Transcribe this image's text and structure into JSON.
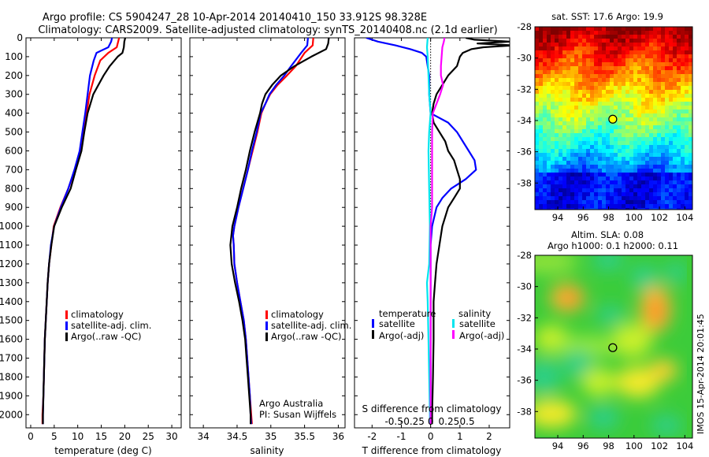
{
  "title": {
    "line1": "Argo profile: CS 5904247_28 10-Apr-2014 20140410_150 33.912S 98.328E",
    "line2": "Climatology: CARS2009. Satellite-adjusted climatology: synTS_20140408.nc (2.1d earlier)"
  },
  "colors": {
    "climatology": "#ff0000",
    "satellite": "#0000ff",
    "argo": "#000000",
    "sal_satellite": "#00e5ee",
    "sal_argo": "#ff00ff"
  },
  "chart_data": [
    {
      "type": "line",
      "name": "temperature-profile",
      "xlabel": "temperature (deg C)",
      "ylabel": "",
      "xlim": [
        -1,
        32
      ],
      "ylim": [
        2070,
        0
      ],
      "xticks": [
        "0",
        "5",
        "10",
        "15",
        "20",
        "25",
        "30"
      ],
      "xtick_values": [
        0,
        5,
        10,
        15,
        20,
        25,
        30
      ],
      "yticks": [
        "0",
        "100",
        "200",
        "300",
        "400",
        "500",
        "600",
        "700",
        "800",
        "900",
        "1000",
        "1100",
        "1200",
        "1300",
        "1400",
        "1500",
        "1600",
        "1700",
        "1800",
        "1900",
        "2000"
      ],
      "ytick_values": [
        0,
        100,
        200,
        300,
        400,
        500,
        600,
        700,
        800,
        900,
        1000,
        1100,
        1200,
        1300,
        1400,
        1500,
        1600,
        1700,
        1800,
        1900,
        2000
      ],
      "legend": [
        "climatology",
        "satellite-adj. clim.",
        "Argo(..raw -QC)"
      ],
      "series": [
        {
          "name": "climatology",
          "depth": [
            0,
            20,
            50,
            80,
            120,
            200,
            300,
            400,
            500,
            600,
            700,
            800,
            900,
            1000,
            1100,
            1200,
            1300,
            1400,
            1500,
            1600,
            1700,
            1800,
            1900,
            2000,
            2050
          ],
          "values": [
            18.8,
            18.6,
            18.3,
            16.5,
            14.8,
            13.6,
            12.5,
            11.9,
            11.2,
            10.6,
            9.4,
            8.0,
            6.3,
            4.9,
            4.4,
            3.9,
            3.6,
            3.4,
            3.2,
            3.0,
            2.9,
            2.8,
            2.7,
            2.5,
            2.5
          ]
        },
        {
          "name": "satellite-adj. clim.",
          "depth": [
            0,
            20,
            50,
            80,
            120,
            200,
            300,
            400,
            500,
            600,
            700,
            800,
            900,
            1000,
            1100,
            1200,
            1300,
            1400,
            1500,
            1600,
            1700,
            1800,
            1900,
            2000,
            2050
          ],
          "values": [
            17.3,
            17.1,
            16.5,
            14.0,
            13.4,
            12.6,
            12.1,
            11.6,
            11.0,
            10.4,
            9.3,
            8.0,
            6.4,
            5.0,
            4.3,
            3.9,
            3.6,
            3.4,
            3.2,
            3.0,
            2.9,
            2.8,
            2.7,
            2.6,
            2.6
          ]
        },
        {
          "name": "Argo(..raw -QC)",
          "depth": [
            0,
            20,
            50,
            80,
            100,
            150,
            200,
            250,
            300,
            400,
            500,
            600,
            700,
            800,
            900,
            1000,
            1100,
            1200,
            1300,
            1400,
            1500,
            1600,
            1700,
            1800,
            1900,
            2000,
            2050
          ],
          "values": [
            20.1,
            19.9,
            19.8,
            19.5,
            18.5,
            16.8,
            15.5,
            14.4,
            13.3,
            12.1,
            11.4,
            10.8,
            9.6,
            8.5,
            6.6,
            5.0,
            4.4,
            3.9,
            3.6,
            3.4,
            3.2,
            3.0,
            2.9,
            2.8,
            2.7,
            2.6,
            2.6
          ]
        }
      ]
    },
    {
      "type": "line",
      "name": "salinity-profile",
      "xlabel": "salinity",
      "xlim": [
        33.8,
        36.1
      ],
      "ylim": [
        2070,
        0
      ],
      "xticks": [
        "34",
        "34.5",
        "35",
        "35.5",
        "36"
      ],
      "xtick_values": [
        34,
        34.5,
        35,
        35.5,
        36
      ],
      "legend": [
        "climatology",
        "satellite-adj. clim.",
        "Argo(..raw -QC)"
      ],
      "annotation": [
        "Argo Australia",
        "PI: Susan Wijffels"
      ],
      "series": [
        {
          "name": "climatology",
          "depth": [
            0,
            40,
            80,
            150,
            200,
            250,
            300,
            350,
            400,
            500,
            600,
            700,
            800,
            900,
            1000,
            1050,
            1100,
            1200,
            1300,
            1400,
            1500,
            1600,
            1700,
            1800,
            1900,
            2000,
            2050
          ],
          "values": [
            35.63,
            35.62,
            35.5,
            35.37,
            35.24,
            35.1,
            34.99,
            34.92,
            34.86,
            34.8,
            34.73,
            34.66,
            34.59,
            34.52,
            34.46,
            34.44,
            34.45,
            34.46,
            34.5,
            34.55,
            34.6,
            34.63,
            34.65,
            34.67,
            34.69,
            34.71,
            34.72
          ]
        },
        {
          "name": "satellite-adj. clim.",
          "depth": [
            0,
            40,
            80,
            150,
            200,
            250,
            300,
            350,
            400,
            500,
            600,
            700,
            800,
            900,
            1000,
            1050,
            1100,
            1200,
            1300,
            1400,
            1500,
            1600,
            1700,
            1800,
            1900,
            2000,
            2050
          ],
          "values": [
            35.55,
            35.54,
            35.45,
            35.3,
            35.2,
            35.08,
            34.98,
            34.92,
            34.85,
            34.79,
            34.72,
            34.66,
            34.59,
            34.52,
            34.46,
            34.44,
            34.45,
            34.46,
            34.5,
            34.55,
            34.6,
            34.63,
            34.65,
            34.67,
            34.69,
            34.7,
            34.71
          ]
        },
        {
          "name": "Argo(..raw -QC)",
          "depth": [
            0,
            30,
            60,
            100,
            150,
            200,
            250,
            300,
            350,
            400,
            500,
            600,
            700,
            800,
            900,
            1000,
            1100,
            1200,
            1300,
            1400,
            1500,
            1600,
            1700,
            1800,
            1900,
            2000,
            2050
          ],
          "values": [
            35.86,
            35.85,
            35.82,
            35.6,
            35.35,
            35.15,
            35.02,
            34.92,
            34.87,
            34.84,
            34.76,
            34.69,
            34.63,
            34.56,
            34.5,
            34.43,
            34.4,
            34.42,
            34.47,
            34.53,
            34.58,
            34.62,
            34.64,
            34.66,
            34.68,
            34.7,
            34.7
          ]
        }
      ]
    },
    {
      "type": "line",
      "name": "difference-from-climatology",
      "xlabel": "T difference from climatology",
      "xlabel_top": "S difference from climatology",
      "xlim": [
        -2.6,
        2.7
      ],
      "ylim": [
        2070,
        0
      ],
      "xticks": [
        "-2",
        "-1",
        "0",
        "1",
        "2"
      ],
      "xtick_values": [
        -2,
        -1,
        0,
        1,
        2
      ],
      "xticks_top": [
        "-0.5",
        "-0.25",
        "0",
        "0.25",
        "0.5"
      ],
      "xtick_top_values": [
        -0.5,
        -0.25,
        0,
        0.25,
        0.5
      ],
      "legend_titles": [
        "temperature",
        "salinity"
      ],
      "legend_temperature": [
        "satellite",
        "Argo(-adj)"
      ],
      "legend_salinity": [
        "satellite",
        "Argo(-adj)"
      ],
      "series": [
        {
          "name": "temperature satellite",
          "depth": [
            0,
            20,
            40,
            60,
            80,
            100,
            150,
            200,
            300,
            400,
            450,
            500,
            550,
            600,
            650,
            700,
            750,
            800,
            850,
            900,
            1000,
            1100,
            1200,
            1400,
            1600,
            1800,
            2000,
            2050
          ],
          "values": [
            -2.2,
            -1.8,
            -1.2,
            -0.7,
            -0.3,
            -0.15,
            -0.1,
            -0.05,
            -0.05,
            0.0,
            0.6,
            0.9,
            1.1,
            1.3,
            1.5,
            1.55,
            1.2,
            0.7,
            0.4,
            0.2,
            0.05,
            0.0,
            0.0,
            0.0,
            0.0,
            0.0,
            0.0,
            0.0
          ]
        },
        {
          "name": "temperature Argo(-adj)",
          "depth": [
            0,
            10,
            20,
            30,
            40,
            50,
            60,
            80,
            100,
            150,
            200,
            250,
            300,
            350,
            400,
            450,
            500,
            550,
            600,
            650,
            700,
            750,
            800,
            850,
            900,
            1000,
            1100,
            1200,
            1300,
            1400,
            1600,
            1800,
            2000,
            2050
          ],
          "values": [
            1.2,
            1.5,
            2.7,
            1.6,
            2.8,
            1.8,
            1.4,
            1.1,
            1.0,
            0.9,
            0.6,
            0.4,
            0.2,
            0.1,
            0.05,
            0.1,
            0.3,
            0.5,
            0.6,
            0.8,
            0.9,
            1.0,
            1.0,
            0.8,
            0.6,
            0.4,
            0.3,
            0.2,
            0.15,
            0.1,
            0.1,
            0.08,
            0.05,
            0.05
          ]
        },
        {
          "name": "salinity satellite",
          "depth": [
            0,
            50,
            100,
            200,
            300,
            400,
            500,
            600,
            800,
            1000,
            1200,
            1300,
            1400,
            1600,
            1800,
            2000,
            2050
          ],
          "values": [
            -0.04,
            -0.05,
            -0.04,
            -0.03,
            -0.02,
            0.0,
            -0.02,
            -0.03,
            -0.02,
            -0.01,
            -0.02,
            -0.05,
            -0.04,
            -0.03,
            -0.02,
            -0.01,
            -0.01
          ]
        },
        {
          "name": "salinity Argo(-adj)",
          "depth": [
            0,
            20,
            50,
            100,
            150,
            200,
            250,
            300,
            350,
            400,
            500,
            600,
            700,
            800,
            900,
            1000,
            1100,
            1200,
            1300,
            1400,
            1600,
            1800,
            2000,
            2050
          ],
          "values": [
            0.19,
            0.18,
            0.16,
            0.15,
            0.14,
            0.14,
            0.17,
            0.13,
            0.08,
            0.03,
            0.02,
            0.02,
            0.02,
            0.02,
            0.02,
            0.0,
            0.0,
            0.0,
            0.0,
            0.0,
            0.0,
            0.0,
            0.0,
            0.0
          ]
        }
      ]
    },
    {
      "type": "heatmap",
      "name": "satellite-sst-map",
      "title": "sat. SST: 17.6  Argo: 19.9",
      "xlim": [
        92.2,
        104.6
      ],
      "ylim": [
        -39.7,
        -28
      ],
      "xticks": [
        "94",
        "96",
        "98",
        "100",
        "102",
        "104"
      ],
      "xtick_values": [
        94,
        96,
        98,
        100,
        102,
        104
      ],
      "yticks": [
        "-28",
        "-30",
        "-32",
        "-34",
        "-36",
        "-38"
      ],
      "ytick_values": [
        -28,
        -30,
        -32,
        -34,
        -36,
        -38
      ],
      "marker": {
        "lon": 98.328,
        "lat": -33.912
      },
      "colorscale": "jet"
    },
    {
      "type": "heatmap",
      "name": "altimetry-sla-map",
      "title_line1": "Altim. SLA: 0.08",
      "title_line2": "Argo h1000: 0.1  h2000: 0.11",
      "xlim": [
        92.2,
        104.6
      ],
      "ylim": [
        -39.7,
        -28
      ],
      "xticks": [
        "94",
        "96",
        "98",
        "100",
        "102",
        "104"
      ],
      "xtick_values": [
        94,
        96,
        98,
        100,
        102,
        104
      ],
      "yticks": [
        "-28",
        "-30",
        "-32",
        "-34",
        "-36",
        "-38"
      ],
      "ytick_values": [
        -28,
        -30,
        -32,
        -34,
        -36,
        -38
      ],
      "marker": {
        "lon": 98.328,
        "lat": -33.912
      },
      "colorscale": "jet",
      "side_label": "IMOS 15-Apr-2014 20:01:45"
    }
  ]
}
